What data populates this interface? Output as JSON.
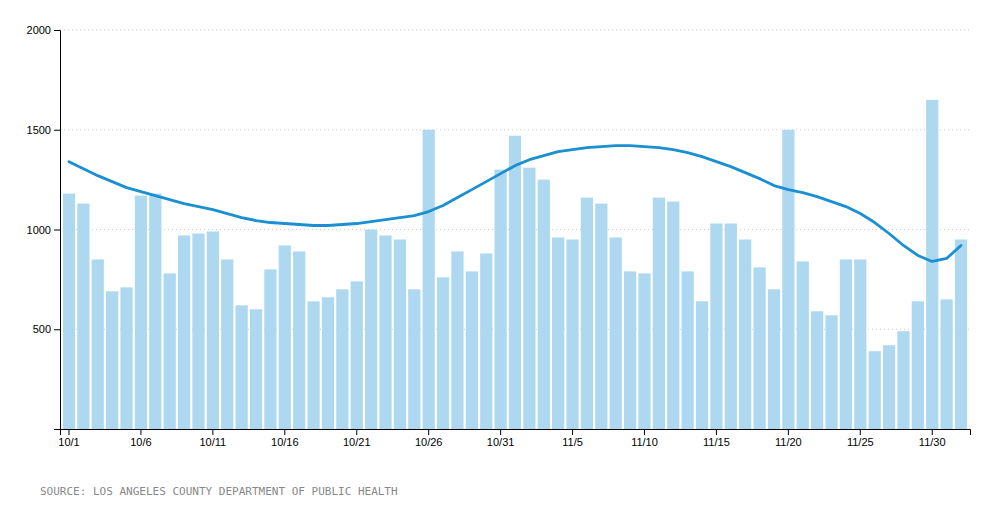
{
  "chart_data": {
    "type": "bar",
    "categories": [
      "10/1",
      null,
      null,
      null,
      null,
      "10/6",
      null,
      null,
      null,
      null,
      "10/11",
      null,
      null,
      null,
      null,
      "10/16",
      null,
      null,
      null,
      null,
      "10/21",
      null,
      null,
      null,
      null,
      "10/26",
      null,
      null,
      null,
      null,
      "10/31",
      null,
      null,
      null,
      null,
      "11/5",
      null,
      null,
      null,
      null,
      "11/10",
      null,
      null,
      null,
      null,
      "11/15",
      null,
      null,
      null,
      null,
      "11/20",
      null,
      null,
      null,
      null,
      "11/25",
      null,
      null,
      null,
      null,
      "11/30",
      null,
      null
    ],
    "series": [
      {
        "type": "bar",
        "color": "#add8f0",
        "values": [
          1180,
          1130,
          850,
          690,
          710,
          1170,
          1180,
          780,
          970,
          980,
          990,
          850,
          620,
          600,
          800,
          920,
          890,
          640,
          660,
          700,
          740,
          1000,
          970,
          950,
          700,
          1500,
          760,
          890,
          790,
          880,
          1300,
          1470,
          1310,
          1250,
          960,
          950,
          1160,
          1130,
          960,
          790,
          780,
          1160,
          1140,
          790,
          640,
          1030,
          1030,
          950,
          810,
          700,
          1500,
          840,
          590,
          570,
          850,
          850,
          390,
          420,
          490,
          640,
          1650,
          650,
          950
        ]
      },
      {
        "type": "line",
        "color": "#1a8fd1",
        "values": [
          1340,
          1305,
          1270,
          1240,
          1210,
          1190,
          1170,
          1150,
          1130,
          1115,
          1100,
          1080,
          1060,
          1045,
          1035,
          1030,
          1025,
          1020,
          1020,
          1025,
          1030,
          1040,
          1050,
          1060,
          1070,
          1090,
          1120,
          1160,
          1200,
          1240,
          1280,
          1320,
          1350,
          1370,
          1390,
          1400,
          1410,
          1415,
          1420,
          1420,
          1415,
          1410,
          1400,
          1385,
          1365,
          1340,
          1315,
          1285,
          1255,
          1220,
          1200,
          1185,
          1165,
          1140,
          1115,
          1080,
          1035,
          980,
          920,
          870,
          840,
          855,
          920
        ]
      }
    ],
    "ylim": [
      0,
      2000
    ],
    "yticks": [
      500,
      1000,
      1500,
      2000
    ],
    "grid": true,
    "annotations": [
      "SOURCE: LOS ANGELES COUNTY DEPARTMENT OF PUBLIC HEALTH"
    ]
  }
}
